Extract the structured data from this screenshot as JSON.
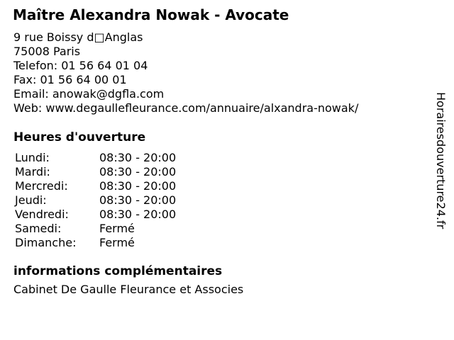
{
  "page": {
    "title": "Maître Alexandra Nowak - Avocate",
    "background_color": "#ffffff",
    "text_color": "#000000"
  },
  "contact": {
    "address_line1": "9 rue Boissy d□Anglas",
    "address_line2": "75008 Paris",
    "phone_line": "Telefon: 01 56 64 01 04",
    "fax_line": "Fax: 01 56 64 00 01",
    "email_line": "Email: anowak@dgfla.com",
    "web_line": "Web: www.degaullefleurance.com/annuaire/alxandra-nowak/"
  },
  "hours": {
    "heading": "Heures d'ouverture",
    "rows": [
      {
        "day": "Lundi:",
        "time": "08:30 - 20:00"
      },
      {
        "day": "Mardi:",
        "time": "08:30 - 20:00"
      },
      {
        "day": "Mercredi:",
        "time": "08:30 - 20:00"
      },
      {
        "day": "Jeudi:",
        "time": "08:30 - 20:00"
      },
      {
        "day": "Vendredi:",
        "time": "08:30 - 20:00"
      },
      {
        "day": "Samedi:",
        "time": "Fermé"
      },
      {
        "day": "Dimanche:",
        "time": "Fermé"
      }
    ]
  },
  "extra": {
    "heading": "informations complémentaires",
    "text": "Cabinet De Gaulle Fleurance et Associes"
  },
  "banner": {
    "text": "Horairesdouverture24.fr"
  }
}
